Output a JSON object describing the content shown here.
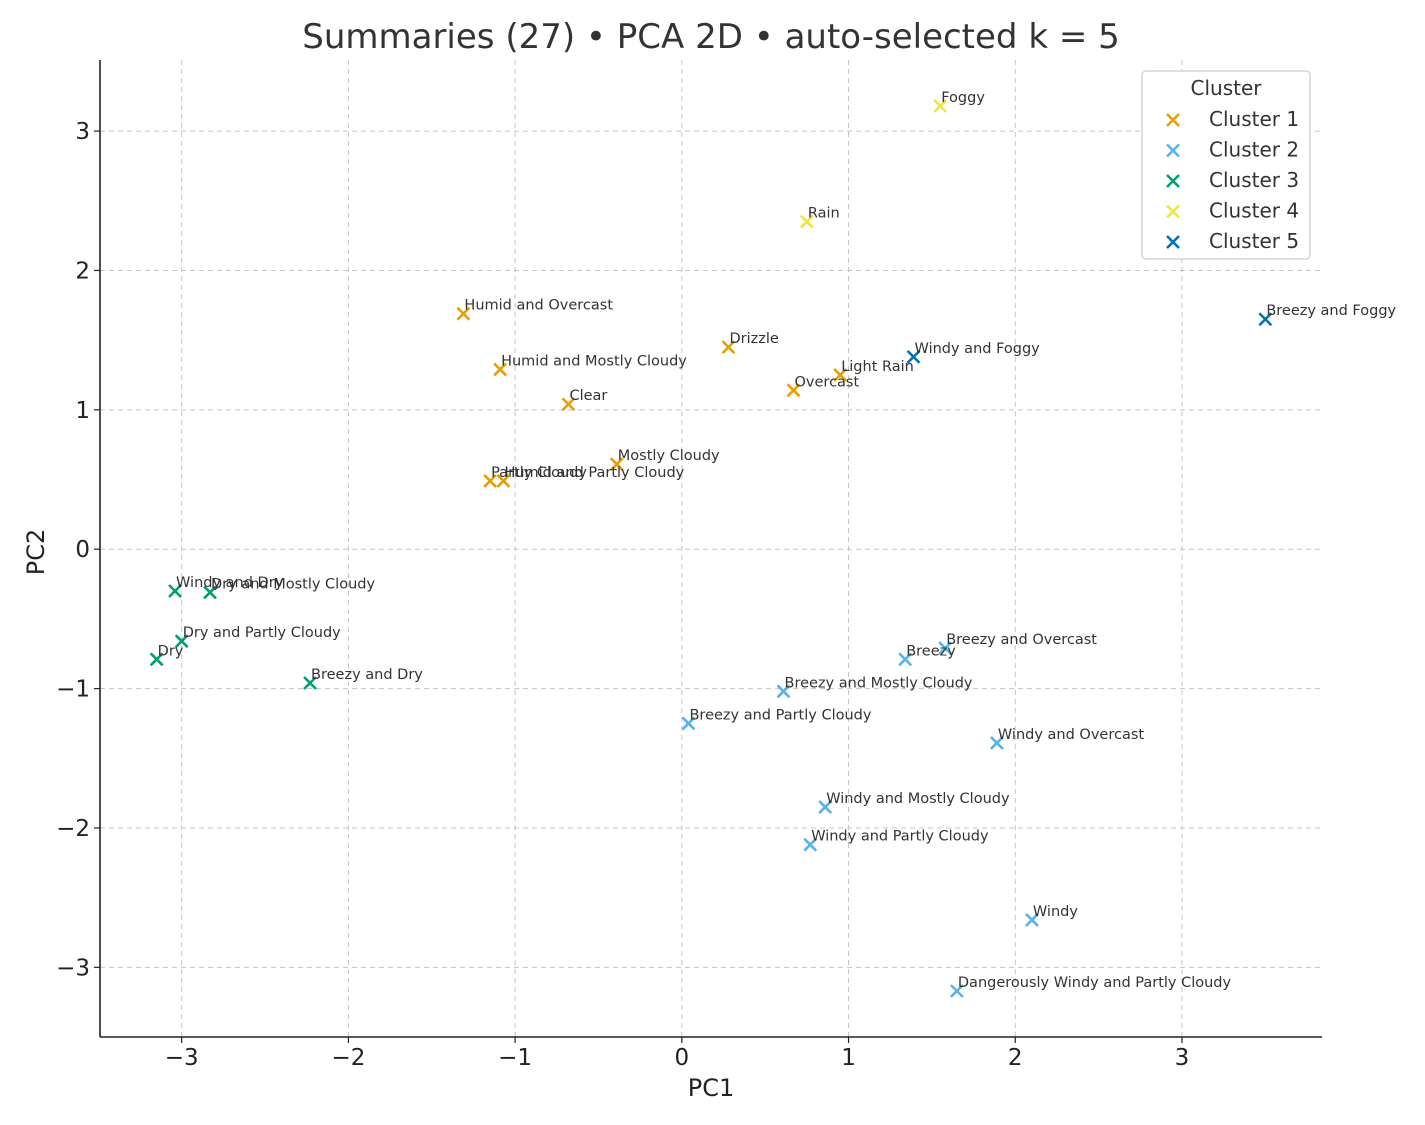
{
  "chart_data": {
    "type": "scatter",
    "title": "Summaries (27) • PCA 2D • auto-selected k = 5",
    "xlabel": "PC1",
    "ylabel": "PC2",
    "xlim": [
      -3.49,
      3.84
    ],
    "ylim": [
      -3.5,
      3.51
    ],
    "xticks": [
      -3,
      -2,
      -1,
      0,
      1,
      2,
      3
    ],
    "yticks": [
      -3,
      -2,
      -1,
      0,
      1,
      2,
      3
    ],
    "xtick_labels": [
      "−3",
      "−2",
      "−1",
      "0",
      "1",
      "2",
      "3"
    ],
    "ytick_labels": [
      "−3",
      "−2",
      "−1",
      "0",
      "1",
      "2",
      "3"
    ],
    "grid": true,
    "marker": "x",
    "legend": {
      "title": "Cluster",
      "placement": "top-right"
    },
    "series": [
      {
        "name": "Cluster 1",
        "color": "#E69F00",
        "points": [
          {
            "label": "Humid and Overcast",
            "x": -1.31,
            "y": 1.69
          },
          {
            "label": "Humid and Mostly Cloudy",
            "x": -1.09,
            "y": 1.29
          },
          {
            "label": "Drizzle",
            "x": 0.28,
            "y": 1.45
          },
          {
            "label": "Light Rain",
            "x": 0.95,
            "y": 1.25
          },
          {
            "label": "Overcast",
            "x": 0.67,
            "y": 1.14
          },
          {
            "label": "Clear",
            "x": -0.68,
            "y": 1.04
          },
          {
            "label": "Mostly Cloudy",
            "x": -0.39,
            "y": 0.61
          },
          {
            "label": "Partly Cloudy",
            "x": -1.15,
            "y": 0.49
          },
          {
            "label": "Humid and Partly Cloudy",
            "x": -1.07,
            "y": 0.49
          }
        ]
      },
      {
        "name": "Cluster 2",
        "color": "#56B4E9",
        "points": [
          {
            "label": "Breezy and Overcast",
            "x": 1.58,
            "y": -0.71
          },
          {
            "label": "Breezy",
            "x": 1.34,
            "y": -0.79
          },
          {
            "label": "Breezy and Mostly Cloudy",
            "x": 0.61,
            "y": -1.02
          },
          {
            "label": "Breezy and Partly Cloudy",
            "x": 0.04,
            "y": -1.25
          },
          {
            "label": "Windy and Overcast",
            "x": 1.89,
            "y": -1.39
          },
          {
            "label": "Windy and Mostly Cloudy",
            "x": 0.86,
            "y": -1.85
          },
          {
            "label": "Windy and Partly Cloudy",
            "x": 0.77,
            "y": -2.12
          },
          {
            "label": "Windy",
            "x": 2.1,
            "y": -2.66
          },
          {
            "label": "Dangerously Windy and Partly Cloudy",
            "x": 1.65,
            "y": -3.17
          }
        ]
      },
      {
        "name": "Cluster 3",
        "color": "#009E73",
        "points": [
          {
            "label": "Windy and Dry",
            "x": -3.04,
            "y": -0.3
          },
          {
            "label": "Dry and Mostly Cloudy",
            "x": -2.83,
            "y": -0.31
          },
          {
            "label": "Dry and Partly Cloudy",
            "x": -3.0,
            "y": -0.66
          },
          {
            "label": "Dry",
            "x": -3.15,
            "y": -0.79
          },
          {
            "label": "Breezy and Dry",
            "x": -2.23,
            "y": -0.96
          }
        ]
      },
      {
        "name": "Cluster 4",
        "color": "#F0E442",
        "points": [
          {
            "label": "Foggy",
            "x": 1.55,
            "y": 3.18
          },
          {
            "label": "Rain",
            "x": 0.75,
            "y": 2.35
          }
        ]
      },
      {
        "name": "Cluster 5",
        "color": "#0072B2",
        "points": [
          {
            "label": "Breezy and Foggy",
            "x": 3.5,
            "y": 1.65
          },
          {
            "label": "Windy and Foggy",
            "x": 1.39,
            "y": 1.38
          }
        ]
      }
    ]
  }
}
